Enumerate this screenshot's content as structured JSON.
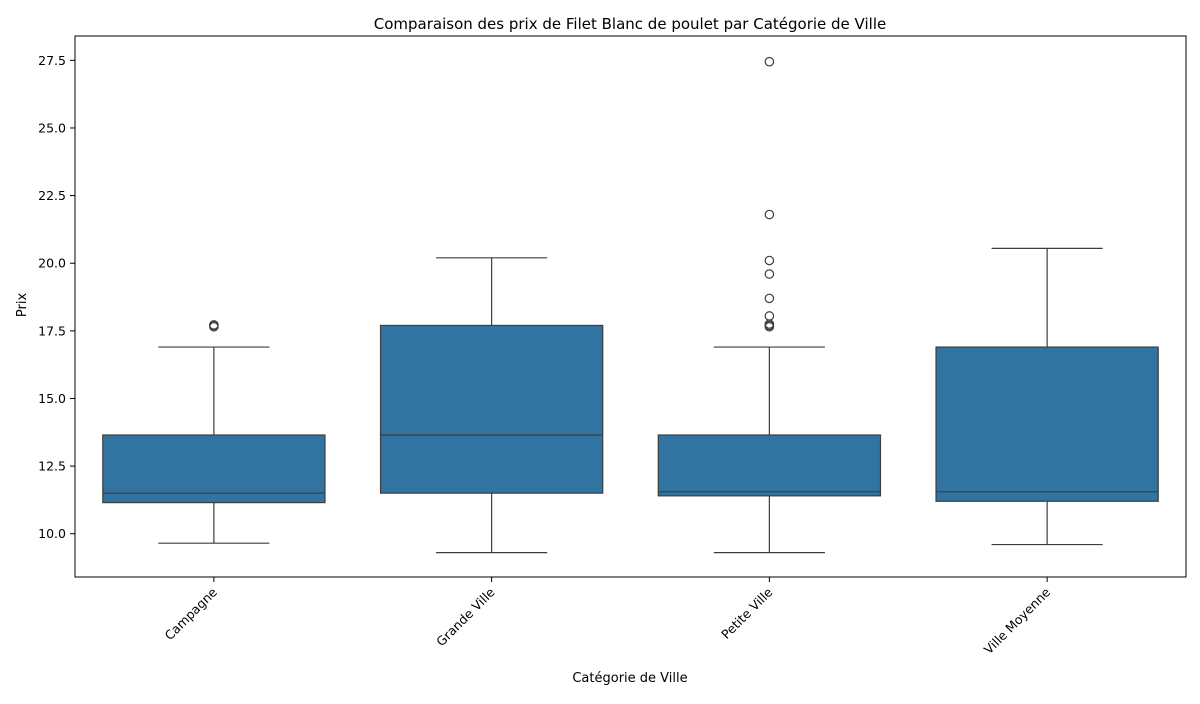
{
  "chart_data": {
    "type": "box",
    "title": "Comparaison des prix de Filet Blanc de poulet par Catégorie de Ville",
    "xlabel": "Catégorie de Ville",
    "ylabel": "Prix",
    "ylim": [
      8.4,
      28.4
    ],
    "yticks": [
      10.0,
      12.5,
      15.0,
      17.5,
      20.0,
      22.5,
      25.0,
      27.5
    ],
    "ytick_labels": [
      "10.0",
      "12.5",
      "15.0",
      "17.5",
      "20.0",
      "22.5",
      "25.0",
      "27.5"
    ],
    "grid": false,
    "legend": "none",
    "colors": {
      "box_fill": "#3274a1",
      "line": "#3d3d3d"
    },
    "categories": [
      "Campagne",
      "Grande Ville",
      "Petite Ville",
      "Ville Moyenne"
    ],
    "boxes": [
      {
        "category": "Campagne",
        "whisker_low": 9.65,
        "q1": 11.15,
        "median": 11.5,
        "q3": 13.65,
        "whisker_high": 16.9,
        "outliers": [
          17.65,
          17.7,
          17.72
        ]
      },
      {
        "category": "Grande Ville",
        "whisker_low": 9.3,
        "q1": 11.5,
        "median": 13.65,
        "q3": 17.7,
        "whisker_high": 20.2,
        "outliers": []
      },
      {
        "category": "Petite Ville",
        "whisker_low": 9.3,
        "q1": 11.4,
        "median": 11.55,
        "q3": 13.65,
        "whisker_high": 16.9,
        "outliers": [
          17.65,
          17.7,
          17.75,
          18.05,
          18.7,
          19.6,
          20.1,
          21.8,
          27.45
        ]
      },
      {
        "category": "Ville Moyenne",
        "whisker_low": 9.6,
        "q1": 11.2,
        "median": 11.55,
        "q3": 16.9,
        "whisker_high": 20.55,
        "outliers": []
      }
    ]
  }
}
